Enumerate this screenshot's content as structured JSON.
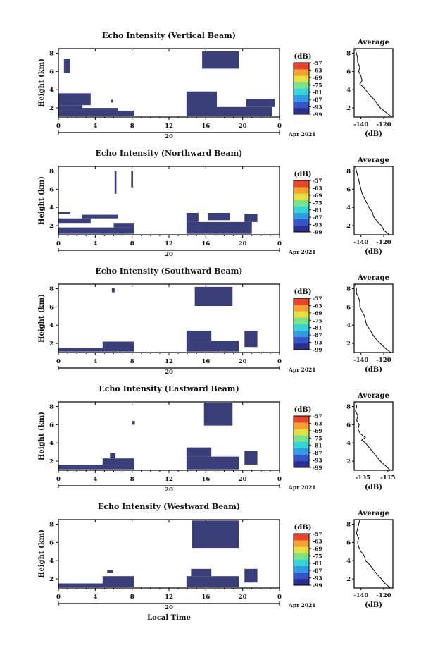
{
  "page": {
    "xaxis_label": "Local Time"
  },
  "common": {
    "ylabel": "Height (km)",
    "date_label": "Apr 2021",
    "day_label": "20",
    "x_ticks": [
      "0",
      "4",
      "8",
      "12",
      "16",
      "20",
      "0"
    ],
    "y_ticks": [
      "2",
      "4",
      "6",
      "8"
    ],
    "colorbar_unit": "(dB)",
    "colorbar_ticks": [
      "-57",
      "-63",
      "-69",
      "-75",
      "-81",
      "-87",
      "-93",
      "-99"
    ],
    "avg_title": "Average",
    "avg_xlabel": "(dB)"
  },
  "colors": {
    "echo_fill": "#3a3f7a",
    "colormap": [
      "#2b2f8c",
      "#3355c8",
      "#2f9be0",
      "#35d4d8",
      "#7be38a",
      "#e6e040",
      "#f5a030",
      "#e8442c"
    ]
  },
  "chart_data": [
    {
      "type": "heatmap",
      "title": "Echo Intensity (Vertical Beam)",
      "xlim_hours": [
        0,
        24
      ],
      "ylim_km": [
        1,
        8.5
      ],
      "intensity_unit": "dB",
      "colorbar_range": [
        -99,
        -57
      ],
      "echo_regions": [
        {
          "t": [
            0,
            8.2
          ],
          "h": [
            1.1,
            1.7
          ]
        },
        {
          "t": [
            0,
            2.6
          ],
          "h": [
            1.7,
            2.3
          ]
        },
        {
          "t": [
            2.6,
            6.5
          ],
          "h": [
            1.7,
            2.0
          ]
        },
        {
          "t": [
            0,
            3.5
          ],
          "h": [
            2.3,
            3.6
          ]
        },
        {
          "t": [
            0.6,
            1.3
          ],
          "h": [
            5.8,
            7.4
          ]
        },
        {
          "t": [
            5.7,
            5.9
          ],
          "h": [
            2.6,
            2.9
          ]
        },
        {
          "t": [
            13.9,
            17.2
          ],
          "h": [
            1.1,
            3.8
          ]
        },
        {
          "t": [
            17.2,
            23.2
          ],
          "h": [
            1.1,
            2.1
          ]
        },
        {
          "t": [
            20.4,
            23.5
          ],
          "h": [
            2.1,
            3.0
          ]
        },
        {
          "t": [
            15.6,
            19.6
          ],
          "h": [
            6.3,
            8.2
          ]
        }
      ],
      "average_profile": {
        "xlabel": "(dB)",
        "x_ticks": [
          -140,
          -120
        ],
        "xlim": [
          -146,
          -112
        ],
        "height_km": [
          1.0,
          1.5,
          2.0,
          2.5,
          3.0,
          3.5,
          4.0,
          4.3,
          4.6,
          5.0,
          5.5,
          6.0,
          6.5,
          7.0,
          7.5,
          8.0,
          8.5
        ],
        "mean_db": [
          -113,
          -118,
          -123,
          -126,
          -129,
          -133,
          -136,
          -138,
          -141,
          -139,
          -140,
          -142,
          -141,
          -143,
          -143,
          -144,
          -145
        ]
      }
    },
    {
      "type": "heatmap",
      "title": "Echo Intensity (Northward Beam)",
      "xlim_hours": [
        0,
        24
      ],
      "ylim_km": [
        1,
        8.5
      ],
      "intensity_unit": "dB",
      "colorbar_range": [
        -99,
        -57
      ],
      "echo_regions": [
        {
          "t": [
            0,
            8.2
          ],
          "h": [
            1.1,
            1.8
          ]
        },
        {
          "t": [
            6.0,
            8.2
          ],
          "h": [
            1.8,
            2.3
          ]
        },
        {
          "t": [
            0,
            3.5
          ],
          "h": [
            2.3,
            2.8
          ]
        },
        {
          "t": [
            2.6,
            6.5
          ],
          "h": [
            2.8,
            3.2
          ]
        },
        {
          "t": [
            0,
            1.3
          ],
          "h": [
            3.3,
            3.5
          ]
        },
        {
          "t": [
            13.9,
            21.0
          ],
          "h": [
            1.1,
            2.4
          ]
        },
        {
          "t": [
            13.9,
            15.2
          ],
          "h": [
            2.4,
            3.4
          ]
        },
        {
          "t": [
            16.2,
            18.6
          ],
          "h": [
            2.6,
            3.4
          ]
        },
        {
          "t": [
            20.2,
            21.6
          ],
          "h": [
            2.4,
            3.3
          ]
        },
        {
          "t": [
            6.1,
            6.3
          ],
          "h": [
            5.5,
            8.0
          ]
        },
        {
          "t": [
            7.9,
            8.1
          ],
          "h": [
            6.2,
            8.0
          ]
        }
      ],
      "average_profile": {
        "xlabel": "(dB)",
        "x_ticks": [
          -140,
          -120
        ],
        "xlim": [
          -146,
          -112
        ],
        "height_km": [
          1.0,
          1.5,
          2.0,
          2.5,
          3.0,
          3.5,
          4.0,
          4.5,
          5.0,
          5.5,
          6.0,
          6.5,
          7.0,
          7.5,
          8.0,
          8.5
        ],
        "mean_db": [
          -115,
          -120,
          -122,
          -126,
          -129,
          -130,
          -133,
          -135,
          -137,
          -139,
          -140,
          -141,
          -142,
          -143,
          -144,
          -145
        ]
      }
    },
    {
      "type": "heatmap",
      "title": "Echo Intensity (Southward Beam)",
      "xlim_hours": [
        0,
        24
      ],
      "ylim_km": [
        1,
        8.5
      ],
      "intensity_unit": "dB",
      "colorbar_range": [
        -99,
        -57
      ],
      "echo_regions": [
        {
          "t": [
            0,
            8.2
          ],
          "h": [
            1.1,
            1.5
          ]
        },
        {
          "t": [
            4.8,
            8.2
          ],
          "h": [
            1.5,
            2.2
          ]
        },
        {
          "t": [
            13.9,
            19.6
          ],
          "h": [
            1.1,
            2.3
          ]
        },
        {
          "t": [
            13.9,
            16.6
          ],
          "h": [
            2.3,
            3.4
          ]
        },
        {
          "t": [
            20.2,
            21.6
          ],
          "h": [
            1.6,
            3.4
          ]
        },
        {
          "t": [
            14.8,
            18.9
          ],
          "h": [
            6.1,
            8.2
          ]
        },
        {
          "t": [
            5.8,
            6.1
          ],
          "h": [
            7.6,
            8.1
          ]
        }
      ],
      "average_profile": {
        "xlabel": "(dB)",
        "x_ticks": [
          -140,
          -120
        ],
        "xlim": [
          -146,
          -112
        ],
        "height_km": [
          1.0,
          1.5,
          2.0,
          2.5,
          3.0,
          3.5,
          4.0,
          4.5,
          5.0,
          5.5,
          6.0,
          6.5,
          7.0,
          7.5,
          8.0,
          8.5
        ],
        "mean_db": [
          -114,
          -119,
          -123,
          -127,
          -130,
          -132,
          -135,
          -136,
          -137,
          -139,
          -141,
          -141,
          -142,
          -144,
          -144,
          -145
        ]
      }
    },
    {
      "type": "heatmap",
      "title": "Echo Intensity (Eastward Beam)",
      "xlim_hours": [
        0,
        24
      ],
      "ylim_km": [
        1,
        8.5
      ],
      "intensity_unit": "dB",
      "colorbar_range": [
        -99,
        -57
      ],
      "echo_regions": [
        {
          "t": [
            0,
            8.2
          ],
          "h": [
            1.1,
            1.6
          ]
        },
        {
          "t": [
            4.8,
            8.2
          ],
          "h": [
            1.6,
            2.3
          ]
        },
        {
          "t": [
            5.6,
            6.2
          ],
          "h": [
            2.3,
            2.9
          ]
        },
        {
          "t": [
            13.9,
            19.6
          ],
          "h": [
            1.1,
            2.5
          ]
        },
        {
          "t": [
            13.9,
            16.6
          ],
          "h": [
            2.5,
            3.5
          ]
        },
        {
          "t": [
            20.2,
            21.6
          ],
          "h": [
            1.6,
            3.1
          ]
        },
        {
          "t": [
            15.8,
            18.9
          ],
          "h": [
            5.9,
            8.4
          ]
        },
        {
          "t": [
            8.0,
            8.3
          ],
          "h": [
            6.0,
            6.4
          ]
        }
      ],
      "average_profile": {
        "xlabel": "(dB)",
        "x_ticks": [
          -135,
          -115
        ],
        "xlim": [
          -142,
          -111
        ],
        "height_km": [
          1.0,
          1.5,
          2.0,
          2.5,
          3.0,
          3.5,
          4.0,
          4.3,
          4.6,
          5.0,
          5.5,
          6.0,
          6.5,
          7.0,
          7.5,
          8.0,
          8.5
        ],
        "mean_db": [
          -113,
          -117,
          -121,
          -124,
          -127,
          -130,
          -133,
          -136,
          -133,
          -137,
          -139,
          -138,
          -140,
          -139,
          -141,
          -140,
          -141
        ]
      }
    },
    {
      "type": "heatmap",
      "title": "Echo Intensity (Westward Beam)",
      "xlim_hours": [
        0,
        24
      ],
      "ylim_km": [
        1,
        8.5
      ],
      "intensity_unit": "dB",
      "colorbar_range": [
        -99,
        -57
      ],
      "echo_regions": [
        {
          "t": [
            0,
            8.2
          ],
          "h": [
            1.1,
            1.5
          ]
        },
        {
          "t": [
            4.8,
            8.2
          ],
          "h": [
            1.5,
            2.3
          ]
        },
        {
          "t": [
            5.3,
            5.9
          ],
          "h": [
            2.7,
            3.0
          ]
        },
        {
          "t": [
            13.9,
            19.6
          ],
          "h": [
            1.1,
            2.3
          ]
        },
        {
          "t": [
            14.4,
            16.6
          ],
          "h": [
            2.3,
            3.1
          ]
        },
        {
          "t": [
            20.2,
            21.6
          ],
          "h": [
            1.6,
            3.1
          ]
        },
        {
          "t": [
            14.5,
            19.6
          ],
          "h": [
            5.4,
            8.4
          ]
        }
      ],
      "average_profile": {
        "xlabel": "(dB)",
        "x_ticks": [
          -140,
          -120
        ],
        "xlim": [
          -146,
          -112
        ],
        "height_km": [
          1.0,
          1.5,
          2.0,
          2.5,
          3.0,
          3.5,
          4.0,
          4.5,
          5.0,
          5.5,
          6.0,
          6.5,
          7.0,
          7.5,
          8.0,
          8.5
        ],
        "mean_db": [
          -114,
          -119,
          -122,
          -126,
          -129,
          -132,
          -136,
          -137,
          -140,
          -142,
          -143,
          -142,
          -144,
          -143,
          -142,
          -141
        ]
      }
    }
  ]
}
